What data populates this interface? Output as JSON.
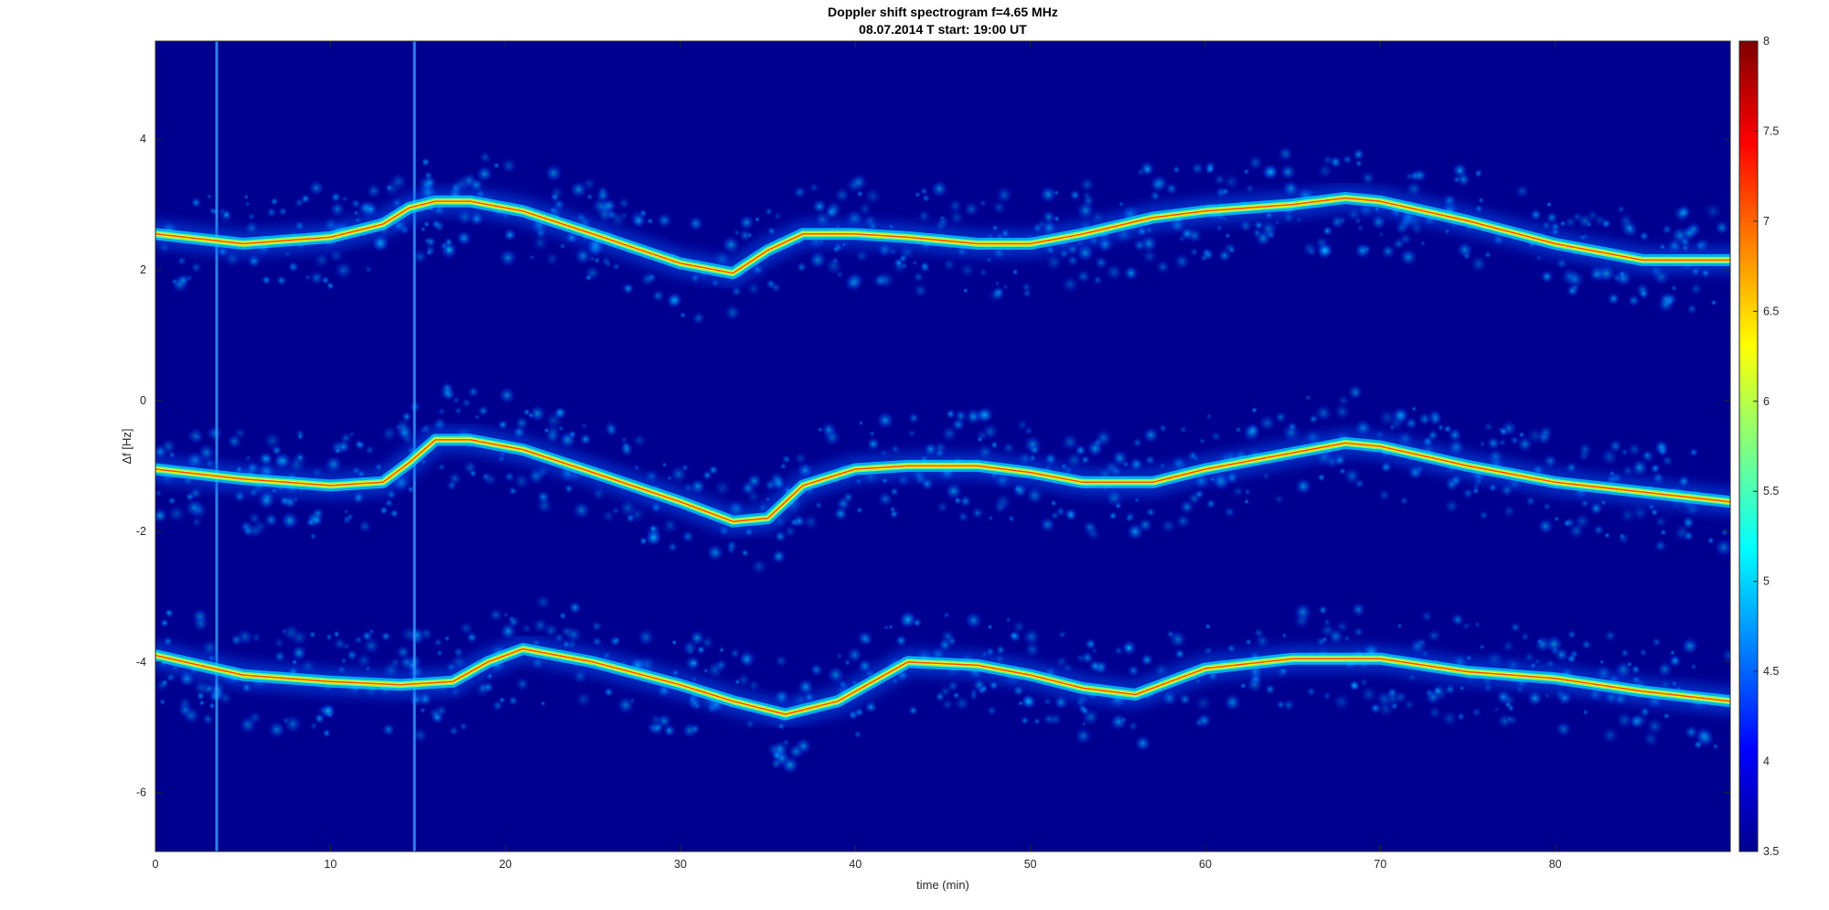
{
  "chart_data": {
    "type": "heatmap",
    "title": "Doppler shift spectrogram f=4.65 MHz",
    "subtitle": "08.07.2014   T start: 19:00 UT",
    "xlabel": "time (min)",
    "ylabel": "Δf [Hz]",
    "xlim": [
      0,
      90
    ],
    "ylim": [
      -6.9,
      5.5
    ],
    "x_ticks": [
      "0",
      "10",
      "20",
      "30",
      "40",
      "50",
      "60",
      "70",
      "80"
    ],
    "y_ticks": [
      "4",
      "2",
      "0",
      "-2",
      "-4",
      "-6"
    ],
    "colorbar": {
      "colormap": "jet",
      "range": [
        3.5,
        8
      ],
      "ticks": [
        "8",
        "7.5",
        "7",
        "6.5",
        "6",
        "5.5",
        "5",
        "4.5",
        "4",
        "3.5"
      ]
    },
    "grid": false,
    "series": [
      {
        "x": [
          0,
          5,
          10,
          13,
          14.5,
          16,
          18,
          21,
          25,
          30,
          33,
          35,
          37,
          40,
          43,
          47,
          50,
          53,
          57,
          60,
          65,
          68,
          70,
          75,
          80,
          85,
          90
        ],
        "y": [
          2.55,
          2.4,
          2.5,
          2.7,
          2.95,
          3.05,
          3.05,
          2.9,
          2.55,
          2.1,
          1.95,
          2.3,
          2.55,
          2.55,
          2.5,
          2.4,
          2.4,
          2.55,
          2.8,
          2.9,
          3.0,
          3.1,
          3.05,
          2.75,
          2.4,
          2.15,
          2.15
        ]
      },
      {
        "x": [
          0,
          5,
          10,
          13,
          14.5,
          16,
          18,
          21,
          25,
          30,
          33,
          35,
          37,
          40,
          43,
          47,
          50,
          53,
          57,
          60,
          65,
          68,
          70,
          75,
          80,
          85,
          90
        ],
        "y": [
          -1.05,
          -1.2,
          -1.3,
          -1.25,
          -0.95,
          -0.6,
          -0.6,
          -0.75,
          -1.1,
          -1.55,
          -1.85,
          -1.8,
          -1.3,
          -1.05,
          -1.0,
          -1.0,
          -1.1,
          -1.25,
          -1.25,
          -1.05,
          -0.8,
          -0.65,
          -0.7,
          -1.0,
          -1.25,
          -1.4,
          -1.55
        ]
      },
      {
        "x": [
          0,
          5,
          10,
          14,
          17,
          19,
          21,
          25,
          30,
          33,
          36,
          39,
          41,
          43,
          47,
          50,
          53,
          56,
          58,
          60,
          65,
          68,
          70,
          75,
          80,
          85,
          90
        ],
        "y": [
          -3.9,
          -4.2,
          -4.3,
          -4.35,
          -4.3,
          -4.0,
          -3.8,
          -4.0,
          -4.35,
          -4.6,
          -4.8,
          -4.6,
          -4.3,
          -4.0,
          -4.05,
          -4.2,
          -4.4,
          -4.5,
          -4.3,
          -4.1,
          -3.95,
          -3.95,
          -3.95,
          -4.15,
          -4.25,
          -4.45,
          -4.6
        ]
      }
    ],
    "vertical_streaks": [
      3.5,
      14.8
    ]
  }
}
